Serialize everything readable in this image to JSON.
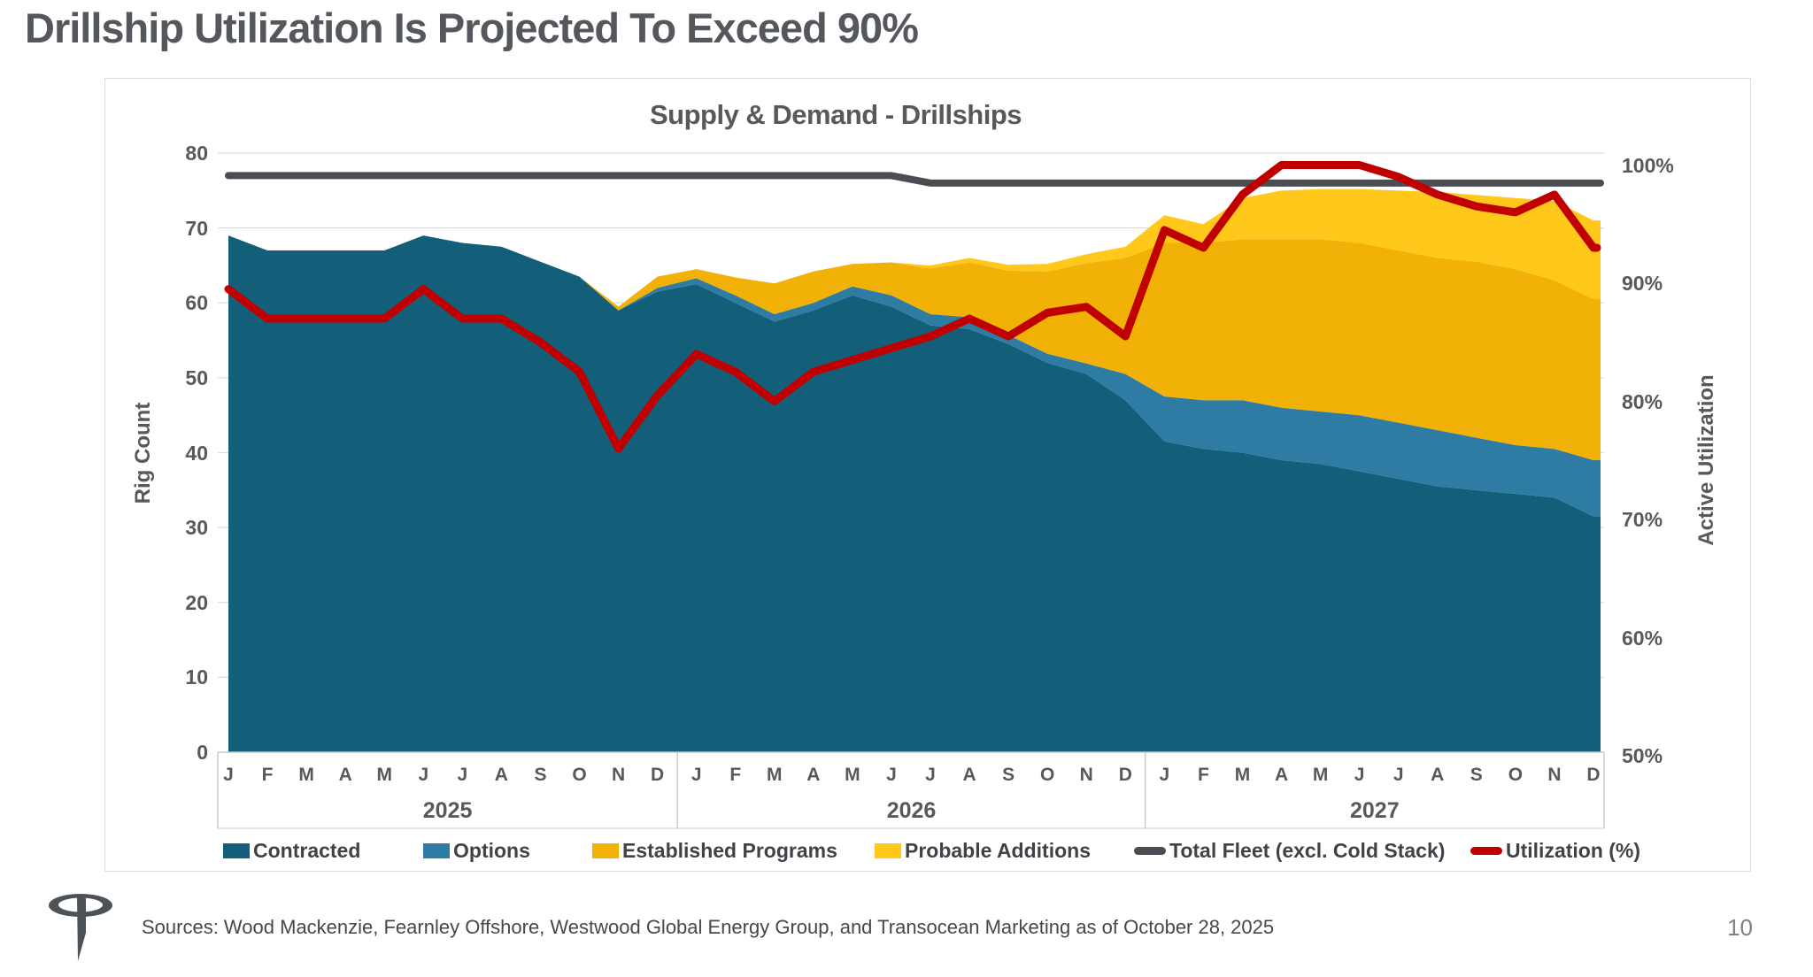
{
  "slide": {
    "title": "Drillship Utilization Is Projected To Exceed 90%",
    "sources": "Sources: Wood Mackenzie, Fearnley Offshore, Westwood Global Energy Group, and Transocean Marketing as of October 28, 2025",
    "page_number": "10",
    "logo": "transocean-logo"
  },
  "colors": {
    "contracted": "#135E78",
    "options": "#2E7CA4",
    "established": "#F1B106",
    "probable": "#FFC81A",
    "fleet_line": "#4A4E53",
    "utilization_line": "#C00000",
    "axis_text": "#595959",
    "gridline": "#DEDEDE"
  },
  "chart_data": {
    "type": "area",
    "title": "Supply & Demand -  Drillships",
    "x_months": [
      "J",
      "F",
      "M",
      "A",
      "M",
      "J",
      "J",
      "A",
      "S",
      "O",
      "N",
      "D"
    ],
    "years": [
      "2025",
      "2026",
      "2027"
    ],
    "left_axis": {
      "title": "Rig Count",
      "ticks": [
        0,
        10,
        20,
        30,
        40,
        50,
        60,
        70,
        80
      ],
      "range": [
        0,
        80
      ]
    },
    "right_axis": {
      "title": "Active Utilization",
      "ticks": [
        "100%",
        "90%",
        "80%",
        "70%",
        "60%",
        "50%"
      ],
      "tick_values": [
        100,
        90,
        80,
        70,
        60,
        50
      ],
      "range": [
        50,
        100
      ]
    },
    "grid": true,
    "legend_position": "bottom",
    "series": [
      {
        "name": "Contracted",
        "type": "area",
        "axis": "left",
        "color": "#135E78",
        "values": [
          69,
          67,
          67,
          67,
          67,
          69,
          68,
          67.5,
          65.5,
          63.5,
          59,
          61.5,
          62.5,
          60,
          57.5,
          59,
          61,
          59.5,
          57,
          56.5,
          54.5,
          52,
          50.5,
          47,
          41.5,
          40.5,
          40,
          39,
          38.5,
          37.5,
          36.5,
          35.5,
          35,
          34.5,
          34,
          31.5
        ]
      },
      {
        "name": "Options",
        "type": "area",
        "axis": "left",
        "color": "#2E7CA4",
        "values": [
          0,
          0,
          0,
          0,
          0,
          0,
          0,
          0,
          0,
          0,
          0,
          0.5,
          0.8,
          1,
          1,
          1,
          1.2,
          1.5,
          1.5,
          1.6,
          1.2,
          1.2,
          1.4,
          3.5,
          6,
          6.5,
          7,
          7,
          7,
          7.5,
          7.5,
          7.5,
          7,
          6.5,
          6.5,
          7.5
        ]
      },
      {
        "name": "Established Programs",
        "type": "area",
        "axis": "left",
        "color": "#F1B106",
        "values": [
          0,
          0,
          0,
          0,
          0,
          0,
          0,
          0,
          0,
          0,
          0.5,
          1.5,
          1.2,
          2.4,
          4.1,
          4.2,
          3,
          4.4,
          6.1,
          7.3,
          8.6,
          11,
          13.4,
          15.5,
          20.5,
          21,
          21.5,
          22.5,
          23,
          23,
          23,
          23,
          23.5,
          23.5,
          22.5,
          21.5
        ]
      },
      {
        "name": "Probable Additions",
        "type": "area",
        "axis": "left",
        "color": "#FFC81A",
        "values": [
          0,
          0,
          0,
          0,
          0,
          0,
          0,
          0,
          0,
          0,
          0,
          0,
          0,
          0,
          0,
          0,
          0,
          0,
          0.4,
          0.6,
          0.8,
          1,
          1.2,
          1.5,
          3.7,
          2.5,
          5.5,
          6.5,
          6.7,
          7.2,
          8,
          8.8,
          8.9,
          9.5,
          10.6,
          10.5
        ]
      },
      {
        "name": "Total Fleet (excl. Cold Stack)",
        "type": "line",
        "axis": "left",
        "color": "#4A4E53",
        "values": [
          77,
          77,
          77,
          77,
          77,
          77,
          77,
          77,
          77,
          77,
          77,
          77,
          77,
          77,
          77,
          77,
          77,
          77,
          76,
          76,
          76,
          76,
          76,
          76,
          76,
          76,
          76,
          76,
          76,
          76,
          76,
          76,
          76,
          76,
          76,
          76
        ]
      },
      {
        "name": "Utilization (%)",
        "type": "line",
        "axis": "right",
        "color": "#C00000",
        "values": [
          89.5,
          87,
          87,
          87,
          87,
          89.5,
          87,
          87,
          85,
          82.5,
          76,
          80.5,
          84,
          82.5,
          80,
          82.5,
          83.5,
          84.5,
          85.5,
          87,
          85.5,
          87.5,
          88,
          85.5,
          94.5,
          93,
          97.5,
          100,
          100,
          100,
          99,
          97.5,
          96.5,
          96,
          97.5,
          93
        ]
      }
    ]
  }
}
